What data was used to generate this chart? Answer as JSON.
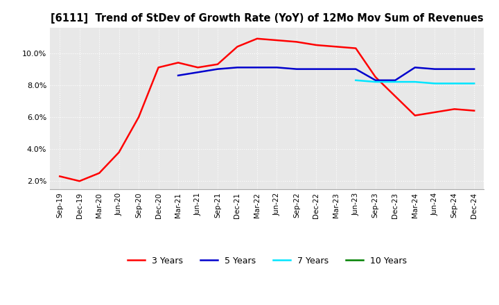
{
  "title": "[6111]  Trend of StDev of Growth Rate (YoY) of 12Mo Mov Sum of Revenues",
  "title_fontsize": 10.5,
  "background_color": "#ffffff",
  "plot_background_color": "#e8e8e8",
  "grid_color": "#ffffff",
  "ylim": [
    0.015,
    0.116
  ],
  "yticks": [
    0.02,
    0.04,
    0.06,
    0.08,
    0.1
  ],
  "ytick_labels": [
    "2.0%",
    "4.0%",
    "6.0%",
    "8.0%",
    "10.0%"
  ],
  "x_labels": [
    "Sep-19",
    "Dec-19",
    "Mar-20",
    "Jun-20",
    "Sep-20",
    "Dec-20",
    "Mar-21",
    "Jun-21",
    "Sep-21",
    "Dec-21",
    "Mar-22",
    "Jun-22",
    "Sep-22",
    "Dec-22",
    "Mar-23",
    "Jun-23",
    "Sep-23",
    "Dec-23",
    "Mar-24",
    "Jun-24",
    "Sep-24",
    "Dec-24"
  ],
  "series_3yr": [
    0.023,
    0.02,
    0.025,
    0.038,
    0.06,
    0.091,
    0.094,
    0.091,
    0.093,
    0.104,
    0.109,
    0.108,
    0.107,
    0.105,
    0.104,
    0.103,
    0.085,
    0.073,
    0.061,
    0.063,
    0.065,
    0.064
  ],
  "series_5yr": [
    null,
    null,
    null,
    null,
    null,
    null,
    0.086,
    0.088,
    0.09,
    0.091,
    0.091,
    0.091,
    0.09,
    0.09,
    0.09,
    0.09,
    0.083,
    0.083,
    0.091,
    0.09,
    0.09,
    0.09
  ],
  "series_7yr": [
    null,
    null,
    null,
    null,
    null,
    null,
    null,
    null,
    null,
    null,
    null,
    null,
    null,
    null,
    null,
    0.083,
    0.082,
    0.082,
    0.082,
    0.081,
    0.081,
    0.081
  ],
  "series_10yr": [
    null,
    null,
    null,
    null,
    null,
    null,
    null,
    null,
    null,
    null,
    null,
    null,
    null,
    null,
    null,
    null,
    null,
    null,
    null,
    null,
    null,
    null
  ],
  "color_3yr": "#ff0000",
  "color_5yr": "#0000cd",
  "color_7yr": "#00e5ff",
  "color_10yr": "#008000",
  "legend_labels": [
    "3 Years",
    "5 Years",
    "7 Years",
    "10 Years"
  ]
}
